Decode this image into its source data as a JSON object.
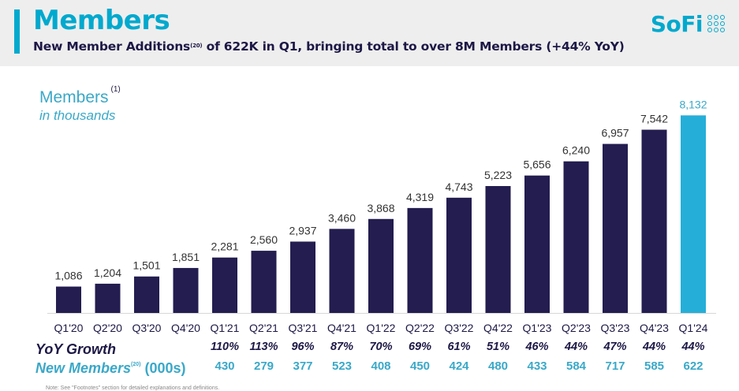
{
  "header": {
    "title": "Members",
    "subtitle_pre": "New Member Additions",
    "subtitle_sup": "(20)",
    "subtitle_post": " of  622K in Q1, bringing total to over 8M Members (+44% YoY)",
    "logo_text": "SoFi"
  },
  "colors": {
    "brand": "#00a9ce",
    "navy": "#1d1846",
    "bar": "#231d50",
    "highlight_bar": "#25afd8",
    "teal_text": "#3aa8c8"
  },
  "legend": {
    "label": "Members",
    "label_sup": "(1)",
    "sub": "in thousands"
  },
  "rows": {
    "yoy_label": "YoY Growth",
    "new_members_label": "New Members",
    "new_members_sup": "(20)",
    "new_members_units": " (000s)"
  },
  "footnote": "Note: See \"Footnotes\" section for detailed explanations and definitions.",
  "chart_data": {
    "type": "bar",
    "title": "",
    "xlabel": "",
    "ylabel": "",
    "categories": [
      "Q1'20",
      "Q2'20",
      "Q3'20",
      "Q4'20",
      "Q1'21",
      "Q2'21",
      "Q3'21",
      "Q4'21",
      "Q1'22",
      "Q2'22",
      "Q3'22",
      "Q4'22",
      "Q1'23",
      "Q2'23",
      "Q3'23",
      "Q4'23",
      "Q1'24"
    ],
    "values": [
      1086,
      1204,
      1501,
      1851,
      2281,
      2560,
      2937,
      3460,
      3868,
      4319,
      4743,
      5223,
      5656,
      6240,
      6957,
      7542,
      8132
    ],
    "value_labels": [
      "1,086",
      "1,204",
      "1,501",
      "1,851",
      "2,281",
      "2,560",
      "2,937",
      "3,460",
      "3,868",
      "4,319",
      "4,743",
      "5,223",
      "5,656",
      "6,240",
      "6,957",
      "7,542",
      "8,132"
    ],
    "highlight_index": 16,
    "ylim": [
      0,
      8500
    ],
    "grid": false,
    "yoy_growth": [
      "",
      "",
      "",
      "",
      "110%",
      "113%",
      "96%",
      "87%",
      "70%",
      "69%",
      "61%",
      "51%",
      "46%",
      "44%",
      "47%",
      "44%",
      "44%"
    ],
    "new_members": [
      "",
      "",
      "",
      "",
      "430",
      "279",
      "377",
      "523",
      "408",
      "450",
      "424",
      "480",
      "433",
      "584",
      "717",
      "585",
      "622"
    ]
  }
}
